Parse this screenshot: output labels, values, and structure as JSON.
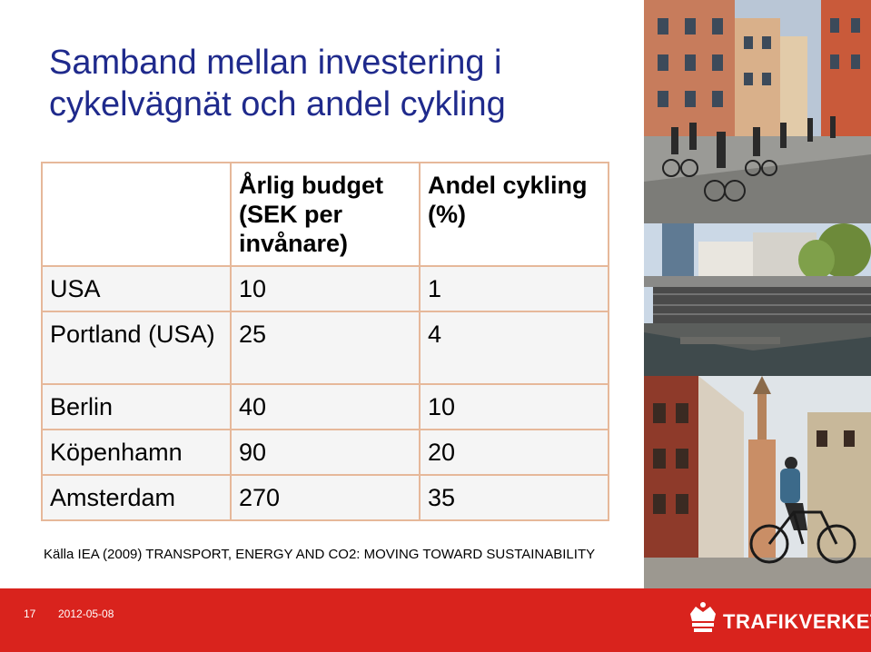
{
  "slide": {
    "title": "Samband mellan investering i cykelvägnät och andel cykling",
    "source": "Källa IEA (2009) TRANSPORT, ENERGY AND CO2: MOVING TOWARD SUSTAINABILITY"
  },
  "table": {
    "headers": [
      "",
      "Årlig budget (SEK per invånare)",
      "Andel cykling (%)"
    ],
    "rows": [
      {
        "city": "USA",
        "budget": "10",
        "share": "1"
      },
      {
        "city": "Portland (USA)",
        "budget": "25",
        "share": "4"
      },
      {
        "city": "Berlin",
        "budget": "40",
        "share": "10"
      },
      {
        "city": "Köpenhamn",
        "budget": "90",
        "share": "20"
      },
      {
        "city": "Amsterdam",
        "budget": "270",
        "share": "35"
      }
    ]
  },
  "footer": {
    "page_number": "17",
    "date": "2012-05-08",
    "logo_text": "TRAFIKVERKET"
  },
  "colors": {
    "title": "#1f2a8c",
    "table_border": "#e6b89a",
    "footer": "#d9231d"
  }
}
